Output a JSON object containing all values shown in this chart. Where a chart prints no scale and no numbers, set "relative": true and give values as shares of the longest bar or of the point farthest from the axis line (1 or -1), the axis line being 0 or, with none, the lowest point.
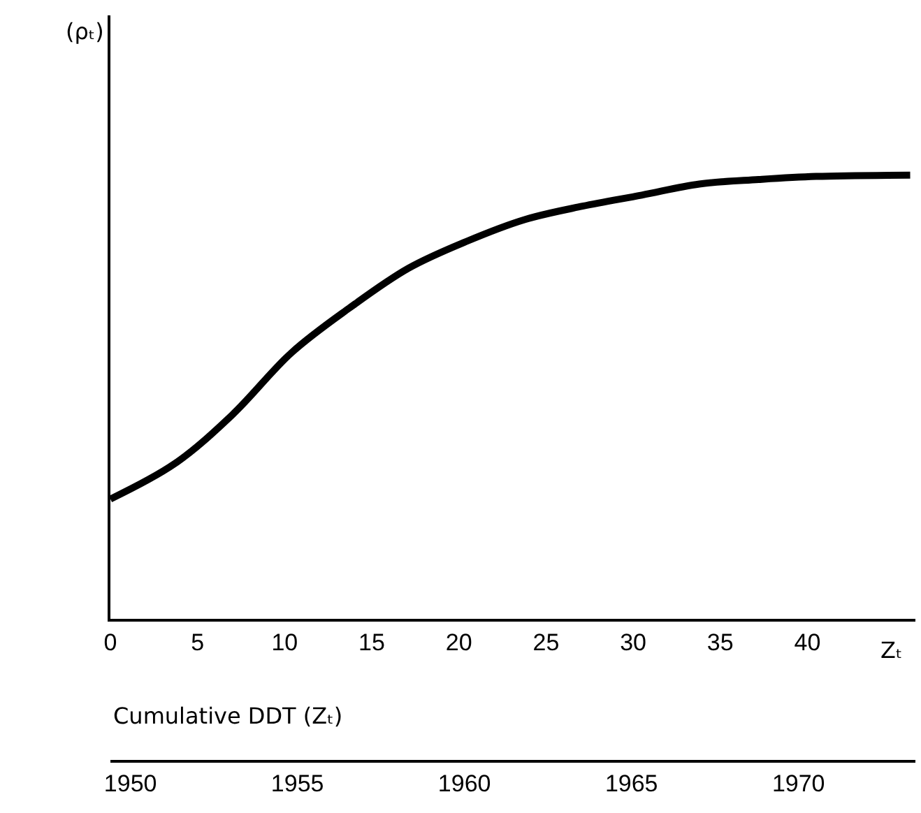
{
  "chart_data": {
    "type": "line",
    "relative": true,
    "xlabel": "Cumulative DDT (Zₜ)",
    "annotations": [
      "(ρₜ)",
      "Zₜ"
    ],
    "x": [
      0,
      3.7,
      7.0,
      10.4,
      13.7,
      17.1,
      20.4,
      23.8,
      27.1,
      30.5,
      33.8,
      37.2,
      40.5,
      45.9
    ],
    "series": [
      {
        "color": "#000000",
        "values": [
          0.27,
          0.35,
          0.46,
          0.6,
          0.7,
          0.79,
          0.85,
          0.9,
          0.93,
          0.955,
          0.98,
          0.99,
          0.997,
          1.0
        ]
      }
    ],
    "xlim": [
      0,
      46.2
    ],
    "xticks": [
      0,
      5,
      10,
      15,
      20,
      25,
      30,
      35,
      40
    ],
    "x2lim": [
      1949.4,
      1973.5
    ],
    "x2ticks": [
      1950,
      1955,
      1960,
      1965,
      1970
    ],
    "marker": "none",
    "line_style": "solid"
  }
}
